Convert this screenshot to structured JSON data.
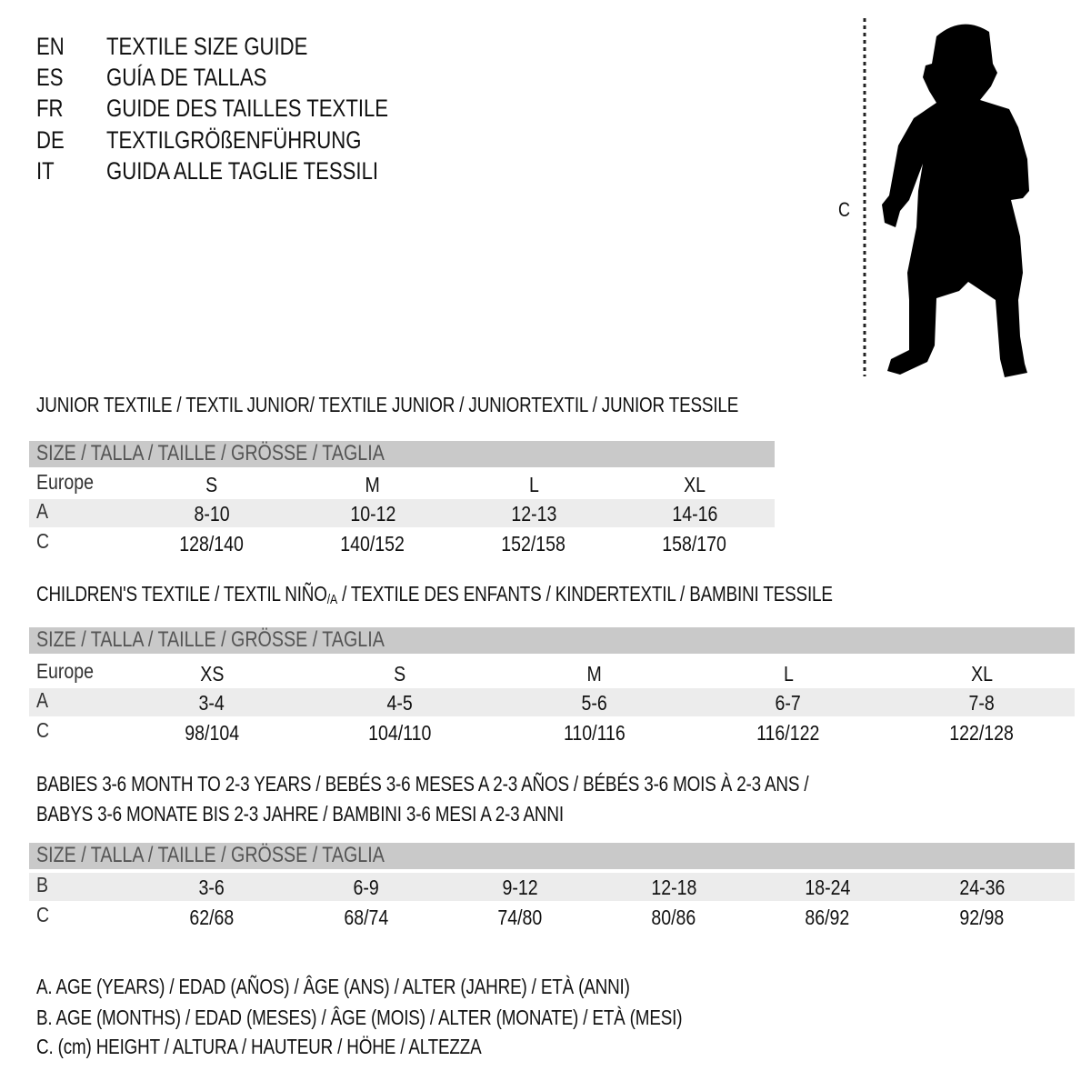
{
  "languages": [
    {
      "code": "EN",
      "title": "TEXTILE SIZE GUIDE"
    },
    {
      "code": "ES",
      "title": "GUÍA DE TALLAS"
    },
    {
      "code": "FR",
      "title": "GUIDE DES TAILLES TEXTILE"
    },
    {
      "code": "DE",
      "title": "TEXTILGRÖßENFÜHRUNG"
    },
    {
      "code": "IT",
      "title": "GUIDA ALLE TAGLIE TESSILI"
    }
  ],
  "figure": {
    "measure_label": "C",
    "icon": "child-silhouette"
  },
  "size_header": "SIZE / TALLA / TAILLE / GRÖSSE / TAGLIA",
  "colors": {
    "header_band": "#c9c9c9",
    "stripe": "#ececec",
    "text": "#111111"
  },
  "junior": {
    "title": "JUNIOR TEXTILE / TEXTIL JUNIOR/ TEXTILE JUNIOR / JUNIORTEXTIL / JUNIOR TESSILE",
    "rows": [
      {
        "label": "Europe",
        "values": [
          "S",
          "M",
          "L",
          "XL"
        ]
      },
      {
        "label": "A",
        "values": [
          "8-10",
          "10-12",
          "12-13",
          "14-16"
        ]
      },
      {
        "label": "C",
        "values": [
          "128/140",
          "140/152",
          "152/158",
          "158/170"
        ]
      }
    ]
  },
  "children": {
    "title_before": "CHILDREN'S TEXTILE / TEXTIL NIÑO",
    "title_sub": "/A",
    "title_after": " / TEXTILE DES ENFANTS / KINDERTEXTIL / BAMBINI TESSILE",
    "rows": [
      {
        "label": "Europe",
        "values": [
          "XS",
          "S",
          "M",
          "L",
          "XL"
        ]
      },
      {
        "label": "A",
        "values": [
          "3-4",
          "4-5",
          "5-6",
          "6-7",
          "7-8"
        ]
      },
      {
        "label": "C",
        "values": [
          "98/104",
          "104/110",
          "110/116",
          "116/122",
          "122/128"
        ]
      }
    ]
  },
  "babies": {
    "title_line1": "BABIES 3-6 MONTH TO 2-3 YEARS / BEBÉS 3-6 MESES A 2-3 AÑOS / BÉBÉS 3-6 MOIS À 2-3 ANS /",
    "title_line2": "BABYS 3-6 MONATE BIS 2-3 JAHRE / BAMBINI 3-6 MESI A 2-3 ANNI",
    "rows": [
      {
        "label": "B",
        "values": [
          "3-6",
          "6-9",
          "9-12",
          "12-18",
          "18-24",
          "24-36"
        ]
      },
      {
        "label": "C",
        "values": [
          "62/68",
          "68/74",
          "74/80",
          "80/86",
          "86/92",
          "92/98"
        ]
      }
    ]
  },
  "legend": [
    "A. AGE (YEARS) / EDAD (AÑOS) / ÂGE (ANS) / ALTER (JAHRE) / ETÀ (ANNI)",
    "B. AGE (MONTHS) / EDAD (MESES) / ÂGE (MOIS) / ALTER (MONATE) / ETÀ (MESI)",
    "C. (cm) HEIGHT / ALTURA / HAUTEUR / HÖHE / ALTEZZA"
  ]
}
